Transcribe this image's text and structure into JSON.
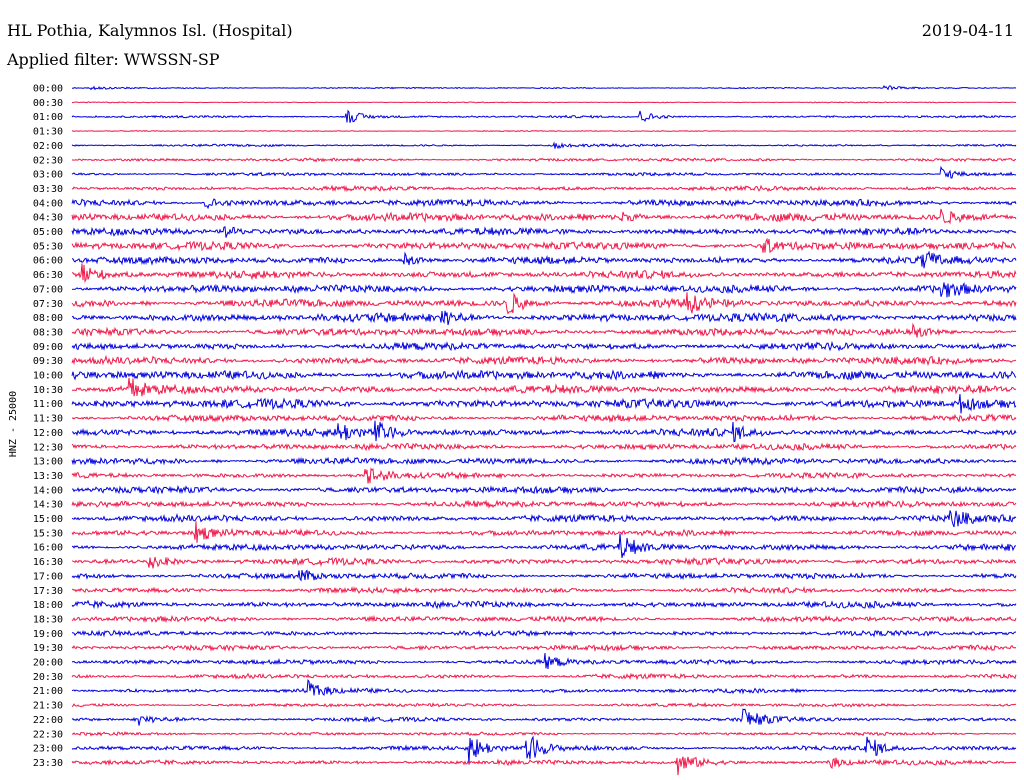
{
  "header": {
    "station": "HL Pothia, Kalymnos Isl. (Hospital)",
    "date": "2019-04-11",
    "filter": "Applied filter: WWSSN-SP"
  },
  "chart_data": {
    "type": "line",
    "title": "HL Pothia, Kalymnos Isl. (Hospital)",
    "subtitle": "Applied filter: WWSSN-SP",
    "ylabel": "HNZ - 25000",
    "xlabel": "",
    "grid": false,
    "trace_colors": [
      "#0000dd",
      "#ee1a4b"
    ],
    "rows": [
      "00:00",
      "00:30",
      "01:00",
      "01:30",
      "02:00",
      "02:30",
      "03:00",
      "03:30",
      "04:00",
      "04:30",
      "05:00",
      "05:30",
      "06:00",
      "06:30",
      "07:00",
      "07:30",
      "08:00",
      "08:30",
      "09:00",
      "09:30",
      "10:00",
      "10:30",
      "11:00",
      "11:30",
      "12:00",
      "12:30",
      "13:00",
      "13:30",
      "14:00",
      "14:30",
      "15:00",
      "15:30",
      "16:00",
      "16:30",
      "17:00",
      "17:30",
      "18:00",
      "18:30",
      "19:00",
      "19:30",
      "20:00",
      "20:30",
      "21:00",
      "21:30",
      "22:00",
      "22:30",
      "23:00",
      "23:30"
    ],
    "noise_level": [
      0.6,
      0.4,
      1.0,
      0.4,
      1.0,
      1.4,
      1.4,
      2.0,
      3.0,
      3.6,
      3.2,
      3.6,
      3.2,
      3.4,
      3.6,
      3.6,
      4.0,
      3.4,
      3.2,
      3.4,
      4.0,
      3.6,
      4.0,
      3.0,
      3.4,
      2.8,
      3.0,
      2.4,
      3.0,
      2.8,
      3.0,
      2.6,
      3.0,
      2.8,
      2.6,
      2.4,
      2.8,
      2.4,
      2.2,
      2.2,
      2.2,
      2.0,
      1.8,
      1.6,
      1.8,
      1.4,
      2.0,
      2.0
    ],
    "events": [
      {
        "row": "00:00",
        "t": 0.02,
        "amp": 2
      },
      {
        "row": "00:00",
        "t": 0.86,
        "amp": 3
      },
      {
        "row": "01:00",
        "t": 0.29,
        "amp": 8
      },
      {
        "row": "01:00",
        "t": 0.6,
        "amp": 7
      },
      {
        "row": "02:00",
        "t": 0.51,
        "amp": 3
      },
      {
        "row": "03:00",
        "t": 0.92,
        "amp": 8
      },
      {
        "row": "04:00",
        "t": 0.14,
        "amp": 6
      },
      {
        "row": "04:30",
        "t": 0.58,
        "amp": 5
      },
      {
        "row": "04:30",
        "t": 0.92,
        "amp": 7
      },
      {
        "row": "05:00",
        "t": 0.16,
        "amp": 6
      },
      {
        "row": "05:30",
        "t": 0.73,
        "amp": 8
      },
      {
        "row": "06:00",
        "t": 0.35,
        "amp": 9
      },
      {
        "row": "06:00",
        "t": 0.9,
        "amp": 9
      },
      {
        "row": "06:30",
        "t": 0.01,
        "amp": 12
      },
      {
        "row": "07:00",
        "t": 0.92,
        "amp": 10
      },
      {
        "row": "07:30",
        "t": 0.46,
        "amp": 14
      },
      {
        "row": "07:30",
        "t": 0.65,
        "amp": 9
      },
      {
        "row": "08:00",
        "t": 0.39,
        "amp": 10
      },
      {
        "row": "08:30",
        "t": 0.89,
        "amp": 7
      },
      {
        "row": "10:30",
        "t": 0.06,
        "amp": 12
      },
      {
        "row": "11:00",
        "t": 0.94,
        "amp": 8
      },
      {
        "row": "12:00",
        "t": 0.28,
        "amp": 11
      },
      {
        "row": "12:00",
        "t": 0.32,
        "amp": 12
      },
      {
        "row": "12:00",
        "t": 0.7,
        "amp": 7
      },
      {
        "row": "13:30",
        "t": 0.31,
        "amp": 14
      },
      {
        "row": "15:00",
        "t": 0.93,
        "amp": 9
      },
      {
        "row": "15:30",
        "t": 0.13,
        "amp": 11
      },
      {
        "row": "16:00",
        "t": 0.58,
        "amp": 12
      },
      {
        "row": "16:30",
        "t": 0.08,
        "amp": 10
      },
      {
        "row": "17:00",
        "t": 0.24,
        "amp": 7
      },
      {
        "row": "20:00",
        "t": 0.5,
        "amp": 7
      },
      {
        "row": "21:00",
        "t": 0.25,
        "amp": 9
      },
      {
        "row": "22:00",
        "t": 0.07,
        "amp": 6
      },
      {
        "row": "22:00",
        "t": 0.71,
        "amp": 14
      },
      {
        "row": "23:00",
        "t": 0.42,
        "amp": 16
      },
      {
        "row": "23:00",
        "t": 0.48,
        "amp": 18
      },
      {
        "row": "23:00",
        "t": 0.84,
        "amp": 14
      },
      {
        "row": "23:30",
        "t": 0.64,
        "amp": 16
      },
      {
        "row": "23:30",
        "t": 0.8,
        "amp": 7
      }
    ]
  }
}
